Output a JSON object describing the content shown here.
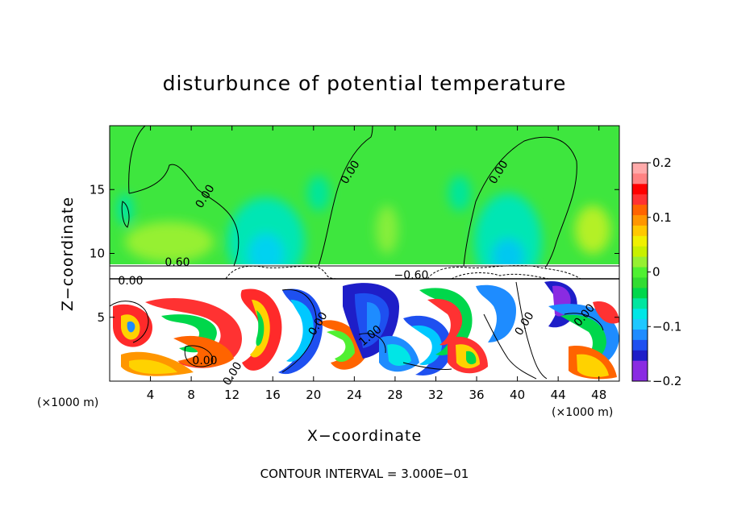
{
  "chart_data": {
    "type": "heatmap",
    "title": "disturbunce of potential temperature",
    "xlabel": "X−coordinate",
    "ylabel": "Z−coordinate",
    "x_unit": "(×1000 m)",
    "y_unit": "(×1000 m)",
    "xlim": [
      0,
      50
    ],
    "ylim": [
      0,
      20
    ],
    "x_ticks": [
      "4",
      "8",
      "12",
      "16",
      "20",
      "24",
      "28",
      "32",
      "36",
      "40",
      "44",
      "48"
    ],
    "y_ticks": [
      "5",
      "10",
      "15"
    ],
    "colorbar": {
      "range": [
        -0.2,
        0.2
      ],
      "tick_labels": [
        "0.2",
        "0.1",
        "0",
        "−0.1",
        "−0.2"
      ],
      "colors": [
        "#8a2be2",
        "#8a2be2",
        "#1e1ec8",
        "#1e50f0",
        "#1e8cff",
        "#1ec8ff",
        "#00e6e6",
        "#00e6a0",
        "#00d74b",
        "#32dc32",
        "#50f032",
        "#96f032",
        "#c8f000",
        "#f0f000",
        "#ffc800",
        "#ff9600",
        "#ff6400",
        "#ff3232",
        "#ff0000",
        "#ff8282",
        "#ffaaaa"
      ]
    },
    "contour_labels": [
      "0.00",
      "0.00",
      "0.00",
      "0.00",
      "0.60",
      "0.00",
      "−0.60",
      "0.00",
      "0.00",
      "1.00",
      "0.00",
      "0.00"
    ],
    "contour_interval_label": "CONTOUR INTERVAL = 3.000E−01"
  }
}
